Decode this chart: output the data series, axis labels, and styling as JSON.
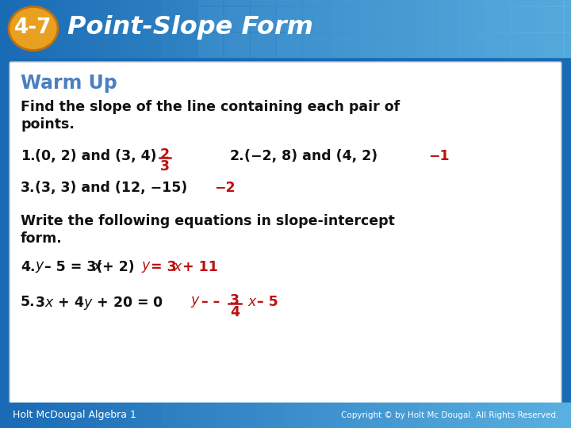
{
  "header_bg_left": "#1a6bb5",
  "header_bg_right": "#5ab0e0",
  "header_text": "Point-Slope Form",
  "header_number": "4-7",
  "header_number_bg": "#e8a020",
  "header_font_color": "#ffffff",
  "body_bg_color": "#ffffff",
  "warm_up_color": "#4a7fc1",
  "warm_up_text": "Warm Up",
  "black_text_color": "#111111",
  "red_answer_color": "#bb1111",
  "footer_bg_left": "#1a6bb5",
  "footer_bg_right": "#5ab0e0",
  "footer_left": "Holt McDougal Algebra 1",
  "footer_right": "Copyright © by Holt Mc Dougal. All Rights Reserved.",
  "tile_color": "#4a9dd4",
  "tile_alpha": 0.3
}
